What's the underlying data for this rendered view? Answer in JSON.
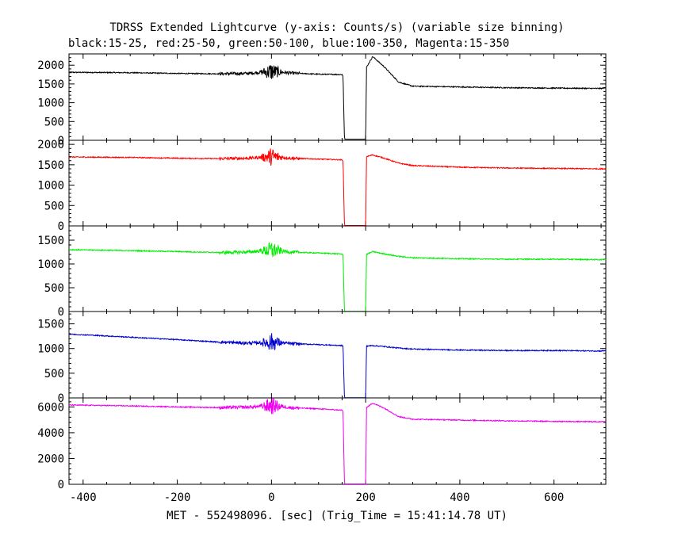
{
  "header": {
    "title": "TDRSS Extended Lightcurve (y-axis: Counts/s) (variable size binning)",
    "bands_line": "black:15-25, red:25-50, green:50-100, blue:100-350, Magenta:15-350"
  },
  "xlabel": "MET - 552498096. [sec] (Trig_Time = 15:41:14.78 UT)",
  "chart_data": [
    {
      "type": "line",
      "series_name": "15-25",
      "color": "#000000",
      "xlim": [
        -430,
        710
      ],
      "ylim": [
        0,
        2300
      ],
      "yticks": [
        0,
        500,
        1000,
        1500,
        2000
      ],
      "xticks": [
        -400,
        -200,
        0,
        200,
        400,
        600
      ],
      "x": [
        -430,
        -300,
        -200,
        -110,
        -50,
        -15,
        0,
        15,
        40,
        100,
        150,
        152,
        155,
        200,
        202,
        215,
        240,
        270,
        300,
        400,
        500,
        600,
        700,
        710
      ],
      "y": [
        1810,
        1800,
        1780,
        1770,
        1780,
        1820,
        1830,
        1820,
        1790,
        1760,
        1750,
        1700,
        30,
        30,
        1950,
        2230,
        1950,
        1550,
        1440,
        1420,
        1400,
        1390,
        1380,
        1400
      ],
      "gap": [
        155,
        200
      ]
    },
    {
      "type": "line",
      "series_name": "25-50",
      "color": "#ff0000",
      "xlim": [
        -430,
        710
      ],
      "ylim": [
        0,
        2100
      ],
      "yticks": [
        0,
        500,
        1000,
        1500,
        2000
      ],
      "xticks": [
        -400,
        -200,
        0,
        200,
        400,
        600
      ],
      "x": [
        -430,
        -300,
        -200,
        -110,
        -50,
        -15,
        0,
        15,
        40,
        100,
        150,
        152,
        155,
        200,
        202,
        215,
        240,
        270,
        300,
        400,
        500,
        600,
        700,
        710
      ],
      "y": [
        1690,
        1680,
        1660,
        1650,
        1660,
        1690,
        1700,
        1690,
        1660,
        1640,
        1620,
        1600,
        10,
        10,
        1700,
        1740,
        1660,
        1540,
        1480,
        1440,
        1420,
        1410,
        1400,
        1400
      ],
      "gap": [
        155,
        200
      ]
    },
    {
      "type": "line",
      "series_name": "50-100",
      "color": "#00ee00",
      "xlim": [
        -430,
        710
      ],
      "ylim": [
        0,
        1800
      ],
      "yticks": [
        0,
        500,
        1000,
        1500
      ],
      "xticks": [
        -400,
        -200,
        0,
        200,
        400,
        600
      ],
      "x": [
        -430,
        -300,
        -200,
        -110,
        -50,
        -15,
        0,
        15,
        40,
        100,
        150,
        152,
        155,
        200,
        202,
        215,
        240,
        270,
        300,
        400,
        500,
        600,
        700,
        710
      ],
      "y": [
        1300,
        1280,
        1260,
        1240,
        1250,
        1280,
        1290,
        1280,
        1250,
        1230,
        1210,
        1180,
        5,
        5,
        1200,
        1260,
        1210,
        1160,
        1130,
        1110,
        1100,
        1100,
        1090,
        1100
      ],
      "gap": [
        155,
        200
      ]
    },
    {
      "type": "line",
      "series_name": "100-350",
      "color": "#0000cc",
      "xlim": [
        -430,
        710
      ],
      "ylim": [
        0,
        1750
      ],
      "yticks": [
        0,
        500,
        1000,
        1500
      ],
      "xticks": [
        -400,
        -200,
        0,
        200,
        400,
        600
      ],
      "x": [
        -430,
        -380,
        -300,
        -200,
        -110,
        -50,
        -15,
        0,
        15,
        40,
        100,
        150,
        152,
        155,
        200,
        202,
        215,
        240,
        270,
        300,
        400,
        500,
        600,
        700,
        710
      ],
      "y": [
        1290,
        1270,
        1230,
        1180,
        1130,
        1110,
        1120,
        1130,
        1120,
        1100,
        1080,
        1060,
        1050,
        5,
        5,
        1050,
        1060,
        1040,
        1010,
        990,
        970,
        960,
        960,
        950,
        960
      ],
      "gap": [
        155,
        200
      ]
    },
    {
      "type": "line",
      "series_name": "15-350",
      "color": "#ee00ee",
      "xlim": [
        -430,
        710
      ],
      "ylim": [
        0,
        6700
      ],
      "yticks": [
        0,
        2000,
        4000,
        6000
      ],
      "xticks": [
        -400,
        -200,
        0,
        200,
        400,
        600
      ],
      "x": [
        -430,
        -300,
        -200,
        -110,
        -50,
        -15,
        0,
        15,
        40,
        100,
        150,
        152,
        155,
        200,
        202,
        215,
        240,
        270,
        300,
        400,
        500,
        600,
        700,
        710
      ],
      "y": [
        6150,
        6080,
        6000,
        5950,
        5980,
        6060,
        6100,
        6060,
        5950,
        5850,
        5750,
        5650,
        30,
        30,
        5950,
        6300,
        5900,
        5250,
        5050,
        4980,
        4920,
        4880,
        4850,
        4880
      ],
      "gap": [
        155,
        200
      ]
    }
  ]
}
